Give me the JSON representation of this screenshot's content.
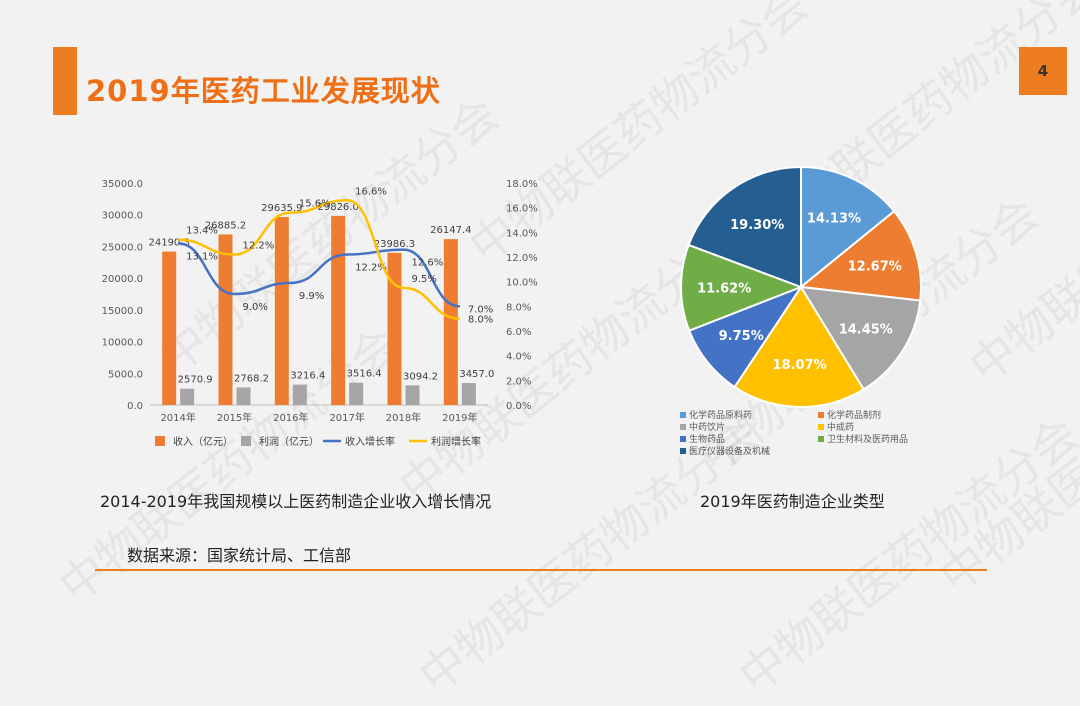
{
  "slide": {
    "title": "2019年医药工业发展现状",
    "page_number": "4",
    "source": "数据来源：国家统计局、工信部",
    "watermark": "中物联医药物流分会",
    "accent": "#ee7d22"
  },
  "chart_data": [
    {
      "type": "bar",
      "caption": "2014-2019年我国规模以上医药制造企业收入增长情况",
      "categories": [
        "2014年",
        "2015年",
        "2016年",
        "2017年",
        "2018年",
        "2019年"
      ],
      "left_axis": {
        "ylim": [
          0,
          35000
        ],
        "ticks": [
          "0.0",
          "5000.0",
          "10000.0",
          "15000.0",
          "20000.0",
          "25000.0",
          "30000.0",
          "35000.0"
        ]
      },
      "right_axis": {
        "ylim": [
          0,
          18
        ],
        "ticks": [
          "0.0%",
          "2.0%",
          "4.0%",
          "6.0%",
          "8.0%",
          "10.0%",
          "12.0%",
          "14.0%",
          "16.0%",
          "18.0%"
        ]
      },
      "series": [
        {
          "name": "收入（亿元）",
          "kind": "bar",
          "axis": "left",
          "color": "#ee7d32",
          "values": [
            24190.3,
            26885.2,
            29635.9,
            29826.0,
            23986.3,
            26147.4
          ],
          "labels": [
            "24190.3",
            "26885.2",
            "29635.9",
            "29826.0",
            "23986.3",
            "26147.4"
          ]
        },
        {
          "name": "利润（亿元）",
          "kind": "bar",
          "axis": "left",
          "color": "#a5a5a5",
          "values": [
            2570.9,
            2768.2,
            3216.4,
            3516.4,
            3094.2,
            3457.0
          ],
          "labels": [
            "2570.9",
            "2768.2",
            "3216.4",
            "3516.4",
            "3094.2",
            "3457.0"
          ]
        },
        {
          "name": "收入增长率",
          "kind": "line",
          "axis": "right",
          "color": "#4472c4",
          "values": [
            13.1,
            9.0,
            9.9,
            12.2,
            12.6,
            8.0
          ],
          "labels": [
            "13.1%",
            "9.0%",
            "9.9%",
            "12.2%",
            "12.6%",
            "8.0%"
          ]
        },
        {
          "name": "利润增长率",
          "kind": "line",
          "axis": "right",
          "color": "#ffc000",
          "values": [
            13.4,
            12.2,
            15.6,
            16.6,
            9.5,
            7.0
          ],
          "labels": [
            "13.4%",
            "12.2%",
            "15.6%",
            "16.6%",
            "9.5%",
            "7.0%"
          ]
        }
      ]
    },
    {
      "type": "pie",
      "caption": "2019年医药制造企业类型",
      "slices": [
        {
          "name": "化学药品原料药",
          "value": 14.13,
          "label": "14.13%",
          "color": "#5b9bd5"
        },
        {
          "name": "化学药品制剂",
          "value": 12.67,
          "label": "12.67%",
          "color": "#ed7d31"
        },
        {
          "name": "中药饮片",
          "value": 14.45,
          "label": "14.45%",
          "color": "#a5a5a5"
        },
        {
          "name": "中成药",
          "value": 18.07,
          "label": "18.07%",
          "color": "#ffc000"
        },
        {
          "name": "生物药品",
          "value": 9.75,
          "label": "9.75%",
          "color": "#4472c4"
        },
        {
          "name": "卫生材料及医药用品",
          "value": 11.62,
          "label": "11.62%",
          "color": "#70ad47"
        },
        {
          "name": "医疗仪器设备及机械",
          "value": 19.3,
          "label": "19.30%",
          "color": "#255e91"
        }
      ]
    }
  ]
}
